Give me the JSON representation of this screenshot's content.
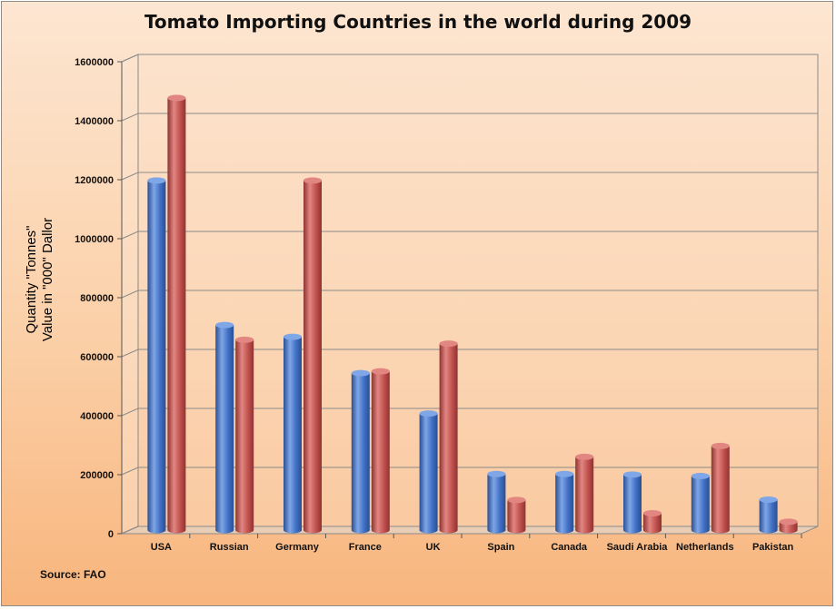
{
  "chart_data": {
    "type": "bar",
    "title": "Tomato Importing Countries in the world during 2009",
    "ylabel_lines": [
      "Quantity \"Tonnes\"",
      "Value in \"000\" Dallor"
    ],
    "source_note": "Source: FAO",
    "categories": [
      "USA",
      "Russian",
      "Germany",
      "France",
      "UK",
      "Spain",
      "Canada",
      "Saudi Arabia",
      "Netherlands",
      "Pakistan"
    ],
    "series": [
      {
        "values": [
          1185000,
          695000,
          655000,
          532000,
          395000,
          190000,
          190000,
          188000,
          183000,
          103000
        ]
      },
      {
        "values": [
          1465000,
          645000,
          1185000,
          538000,
          632000,
          102000,
          248000,
          57000,
          285000,
          28000
        ]
      }
    ],
    "ylim": [
      0,
      1600000
    ],
    "yticks": [
      "0",
      "200000",
      "400000",
      "600000",
      "800000",
      "1000000",
      "1200000",
      "1400000",
      "1600000"
    ],
    "grid": true,
    "colors": {
      "series1_main": "#3f6fc4",
      "series1_light": "#7fa6e6",
      "series1_dark": "#2a4f93",
      "series2_main": "#c0504d",
      "series2_light": "#e28682",
      "series2_dark": "#8e3431",
      "gridline": "#8a8a8a",
      "wall": "#fce3cf"
    }
  }
}
